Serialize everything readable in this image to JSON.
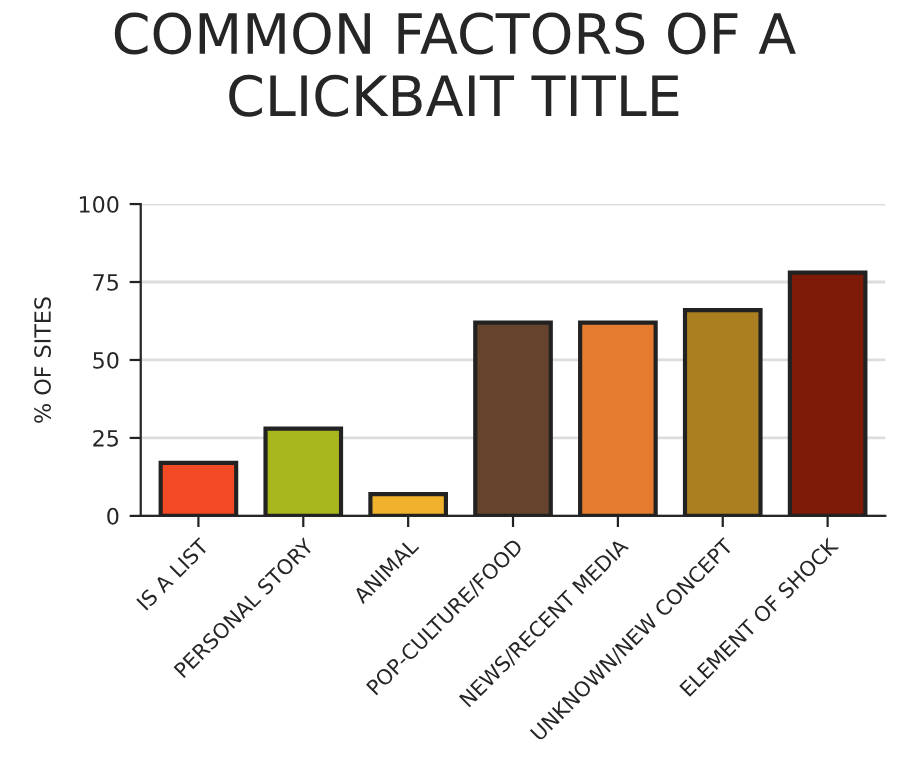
{
  "chart_data": {
    "type": "bar",
    "title": "COMMON FACTORS OF A\nCLICKBAIT TITLE",
    "ylabel": "% OF SITES",
    "categories": [
      "IS A LIST",
      "PERSONAL STORY",
      "ANIMAL",
      "POP-CULTURE/FOOD",
      "NEWS/RECENT MEDIA",
      "UNKNOWN/NEW CONCEPT",
      "ELEMENT OF SHOCK"
    ],
    "values": [
      17,
      28,
      7,
      62,
      62,
      66,
      78
    ],
    "colors": [
      "#f24a25",
      "#a9b71f",
      "#f0b22c",
      "#66432c",
      "#e57c2f",
      "#ab7f1f",
      "#7e1a08"
    ],
    "ylim": [
      0,
      100
    ],
    "yticks": [
      0,
      25,
      50,
      75,
      100
    ],
    "grid": "y"
  }
}
